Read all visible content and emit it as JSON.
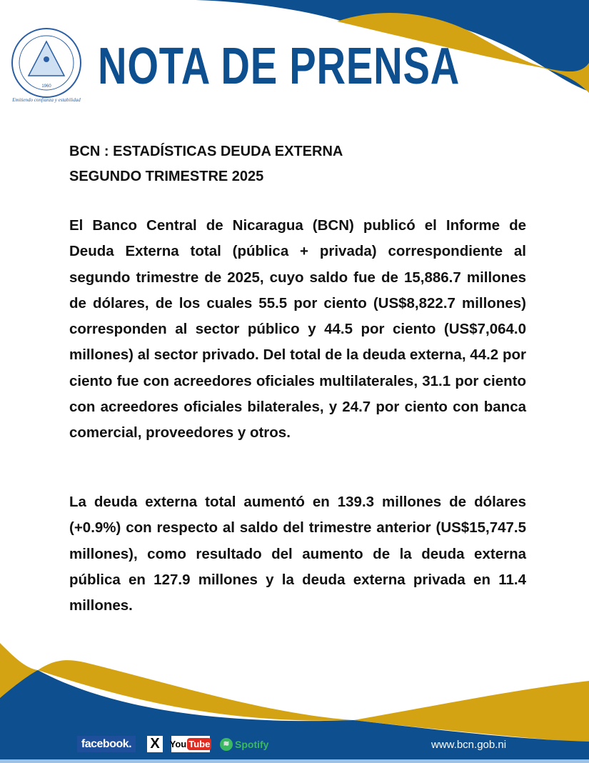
{
  "header": {
    "logo_text": "BANCO CENTRAL DE NICARAGUA",
    "logo_year": "1960",
    "logo_motto": "Emitiendo confianza y estabilidad",
    "title": "NOTA DE PRENSA"
  },
  "colors": {
    "brand_blue": "#0d4f8f",
    "brand_gold": "#d4a313"
  },
  "headline": {
    "line1": "BCN : ESTADÍSTICAS DEUDA EXTERNA",
    "line2": "SEGUNDO TRIMESTRE 2025"
  },
  "body": {
    "paragraph1": "El Banco Central de Nicaragua (BCN) publicó el Informe de Deuda Externa total (pública + privada) correspondiente al segundo trimestre de 2025, cuyo saldo fue de 15,886.7 millones de dólares, de los cuales 55.5 por ciento (US$8,822.7 millones) corresponden al sector público y 44.5 por ciento (US$7,064.0 millones) al sector privado. Del total de la deuda externa, 44.2 por ciento fue con acreedores oficiales multilaterales, 31.1 por ciento con acreedores oficiales bilaterales, y 24.7 por ciento con banca comercial, proveedores y otros.",
    "paragraph2": "La deuda externa total aumentó en 139.3 millones de dólares (+0.9%) con respecto al saldo del trimestre anterior (US$15,747.5 millones), como resultado del aumento de la deuda externa pública en 127.9 millones y la deuda externa privada en 11.4 millones."
  },
  "footer": {
    "facebook": "facebook.",
    "x": "X",
    "youtube_you": "You",
    "youtube_tube": "Tube",
    "spotify": "Spotify",
    "website": "www.bcn.gob.ni"
  }
}
